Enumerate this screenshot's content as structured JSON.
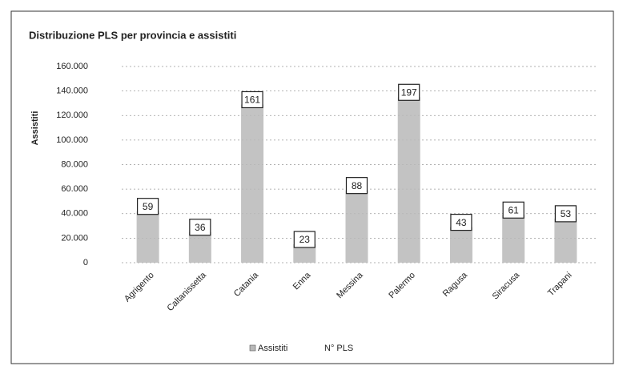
{
  "chart_data": {
    "type": "bar",
    "title": "Distribuzione PLS per provincia e assistiti",
    "y_label": "Assistiti",
    "categories": [
      "Agrigento",
      "Caltanissetta",
      "Catania",
      "Enna",
      "Messina",
      "Palermo",
      "Ragusa",
      "Siracusa",
      "Trapani"
    ],
    "series": [
      {
        "name": "Assistiti",
        "color": "#b8b8b8",
        "values": [
          42000,
          25000,
          129000,
          15000,
          59000,
          135000,
          29000,
          39000,
          36000
        ]
      },
      {
        "name": "N° PLS",
        "values": [
          59,
          36,
          161,
          23,
          88,
          197,
          43,
          61,
          53
        ]
      }
    ],
    "ylim": [
      0,
      160000
    ],
    "yticks": [
      0,
      {
        "value": 20000,
        "label": "20.000"
      },
      {
        "value": 40000,
        "label": "40.000"
      },
      {
        "value": 60000,
        "label": "60.000"
      },
      {
        "value": 80000,
        "label": "80.000"
      },
      {
        "value": 100000,
        "label": "100.000"
      },
      {
        "value": 120000,
        "label": "120.000"
      },
      {
        "value": 140000,
        "label": "140.000"
      },
      {
        "value": 160000,
        "label": "160.000"
      }
    ],
    "grid": true
  }
}
